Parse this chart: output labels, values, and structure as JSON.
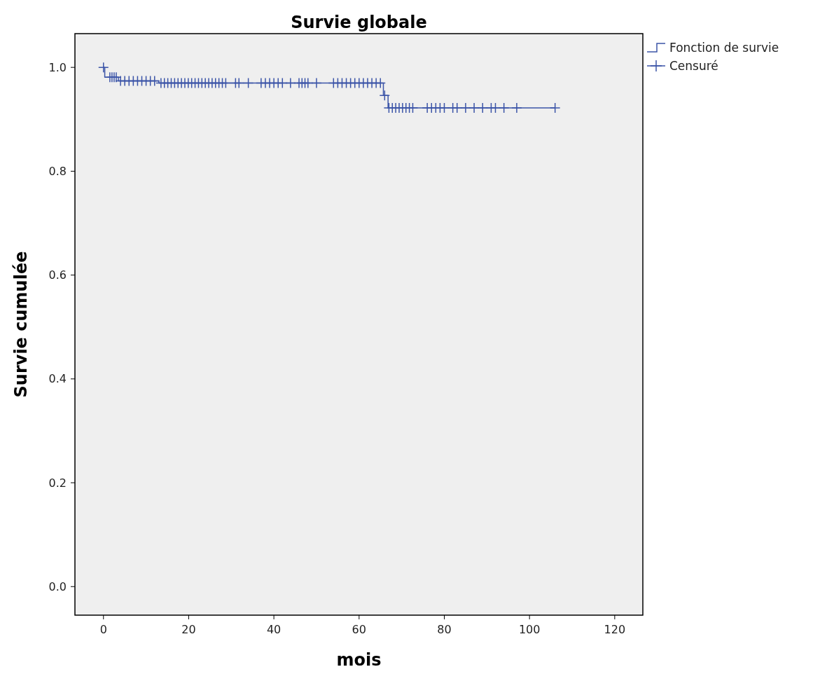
{
  "chart_data": {
    "type": "step",
    "title": "Survie globale",
    "xlabel": "mois",
    "ylabel": "Survie cumulée",
    "xlim": [
      -6.7,
      126.6
    ],
    "ylim": [
      -0.055,
      1.065
    ],
    "xticks": [
      0,
      20,
      40,
      60,
      80,
      100,
      120
    ],
    "yticks": [
      {
        "value": 0,
        "label": "0.0"
      },
      {
        "value": 0.2,
        "label": "0.2"
      },
      {
        "value": 0.4,
        "label": "0.4"
      },
      {
        "value": 0.6,
        "label": "0.6"
      },
      {
        "value": 0.8,
        "label": "0.8"
      },
      {
        "value": 1,
        "label": "1.0"
      }
    ],
    "grid": false,
    "legend": "top right",
    "series": [
      {
        "name": "Fonction de survie",
        "color": "#3c55a8",
        "x": [
          0,
          0.3,
          3.5,
          13,
          65.7,
          66.8,
          106
        ],
        "values": [
          1.0,
          0.981,
          0.974,
          0.97,
          0.946,
          0.922,
          0.922
        ]
      },
      {
        "name": "Censuré",
        "type": "scatter",
        "marker": "cross",
        "color": "#3c55a8",
        "x": [
          0,
          1.5,
          2,
          2.5,
          3,
          4,
          5,
          6,
          7,
          8,
          9,
          10,
          11,
          12,
          13.5,
          14.3,
          15.1,
          15.9,
          16.7,
          17.5,
          18.3,
          19.1,
          19.9,
          20.7,
          21.5,
          22.3,
          23.1,
          23.9,
          24.7,
          25.5,
          26.3,
          27.1,
          27.9,
          28.7,
          31,
          31.8,
          34,
          37,
          38,
          39,
          40,
          41,
          42,
          43.9,
          45.9,
          46.6,
          47.3,
          48,
          50,
          54,
          55,
          56,
          57,
          58,
          59,
          60,
          61,
          62,
          63,
          64,
          65,
          66,
          67,
          67.8,
          68.6,
          69.4,
          70.2,
          71,
          71.8,
          72.6,
          76,
          77,
          78,
          79,
          80,
          82,
          83,
          85,
          87,
          89,
          91,
          92,
          94,
          97,
          106
        ],
        "values": [
          1.0,
          0.981,
          0.981,
          0.981,
          0.981,
          0.974,
          0.974,
          0.974,
          0.974,
          0.974,
          0.974,
          0.974,
          0.974,
          0.974,
          0.97,
          0.97,
          0.97,
          0.97,
          0.97,
          0.97,
          0.97,
          0.97,
          0.97,
          0.97,
          0.97,
          0.97,
          0.97,
          0.97,
          0.97,
          0.97,
          0.97,
          0.97,
          0.97,
          0.97,
          0.97,
          0.97,
          0.97,
          0.97,
          0.97,
          0.97,
          0.97,
          0.97,
          0.97,
          0.97,
          0.97,
          0.97,
          0.97,
          0.97,
          0.97,
          0.97,
          0.97,
          0.97,
          0.97,
          0.97,
          0.97,
          0.97,
          0.97,
          0.97,
          0.97,
          0.97,
          0.97,
          0.946,
          0.922,
          0.922,
          0.922,
          0.922,
          0.922,
          0.922,
          0.922,
          0.922,
          0.922,
          0.922,
          0.922,
          0.922,
          0.922,
          0.922,
          0.922,
          0.922,
          0.922,
          0.922,
          0.922,
          0.922,
          0.922,
          0.922,
          0.922
        ]
      }
    ]
  }
}
